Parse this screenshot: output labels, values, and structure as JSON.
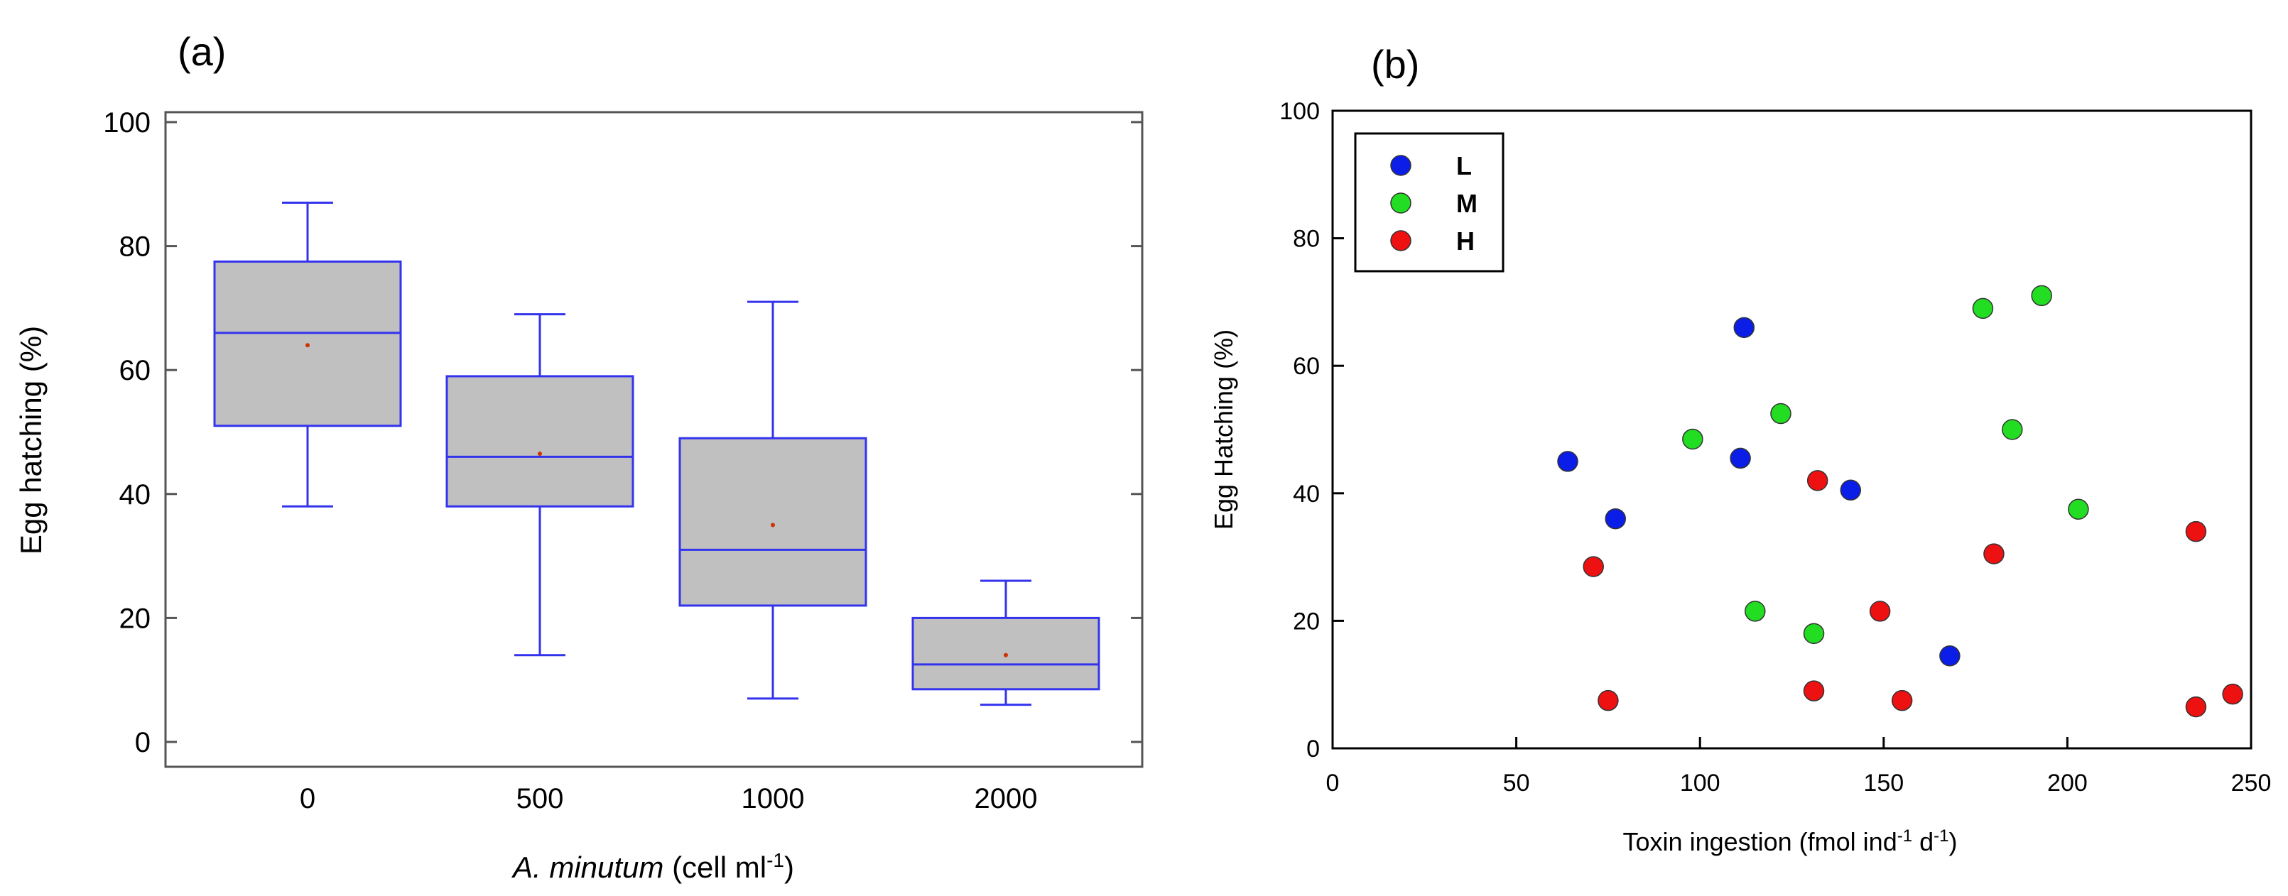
{
  "chart_data": [
    {
      "type": "box",
      "panel_label": "(a)",
      "categories": [
        "0",
        "500",
        "1000",
        "2000"
      ],
      "boxes": [
        {
          "category": "0",
          "whisker_low": 38,
          "q1": 51,
          "median": 66,
          "q3": 77.5,
          "whisker_high": 87,
          "mean": 64
        },
        {
          "category": "500",
          "whisker_low": 14,
          "q1": 38,
          "median": 46,
          "q3": 59,
          "whisker_high": 69,
          "mean": 46.5
        },
        {
          "category": "1000",
          "whisker_low": 7,
          "q1": 22,
          "median": 31,
          "q3": 49,
          "whisker_high": 71,
          "mean": 35
        },
        {
          "category": "2000",
          "whisker_low": 6,
          "q1": 8.5,
          "median": 12.5,
          "q3": 20,
          "whisker_high": 26,
          "mean": 14
        }
      ],
      "xlabel_italic": "A. minutum",
      "xlabel_rest": " (cell ml",
      "xlabel_sup": "-1",
      "xlabel_close": ")",
      "ylabel": "Egg hatching (%)",
      "ylim": [
        0,
        100
      ],
      "yticks": [
        0,
        20,
        40,
        60,
        80,
        100
      ],
      "colors": {
        "box_fill": "#c0c0c0",
        "box_line": "#3333ee",
        "mean_marker": "#cc3300"
      }
    },
    {
      "type": "scatter",
      "panel_label": "(b)",
      "xlabel_parts": [
        "Toxin ingestion (fmol ind",
        "-1",
        " d",
        "-1",
        ")"
      ],
      "ylabel": "Egg Hatching (%)",
      "xlim": [
        0,
        250
      ],
      "ylim": [
        0,
        100
      ],
      "xticks": [
        0,
        50,
        100,
        150,
        200,
        250
      ],
      "yticks": [
        0,
        20,
        40,
        60,
        80,
        100
      ],
      "legend_position": "top-left",
      "series": [
        {
          "name": "L",
          "color": "#0a1ee8",
          "points": [
            [
              64,
              45
            ],
            [
              77,
              36
            ],
            [
              111,
              45.5
            ],
            [
              112,
              66
            ],
            [
              141,
              40.5
            ],
            [
              168,
              14.5
            ]
          ]
        },
        {
          "name": "M",
          "color": "#22dd22",
          "points": [
            [
              98,
              48.5
            ],
            [
              115,
              21.5
            ],
            [
              122,
              52.5
            ],
            [
              131,
              18
            ],
            [
              177,
              69
            ],
            [
              185,
              50
            ],
            [
              193,
              71
            ],
            [
              203,
              37.5
            ]
          ]
        },
        {
          "name": "H",
          "color": "#ee1111",
          "points": [
            [
              71,
              28.5
            ],
            [
              75,
              7.5
            ],
            [
              131,
              9
            ],
            [
              132,
              42
            ],
            [
              149,
              21.5
            ],
            [
              155,
              7.5
            ],
            [
              180,
              30.5
            ],
            [
              235,
              34
            ],
            [
              235,
              6.5
            ],
            [
              245,
              8.5
            ]
          ]
        }
      ]
    }
  ]
}
